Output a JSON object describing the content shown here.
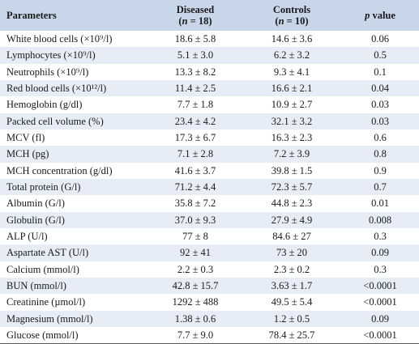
{
  "table": {
    "headers": {
      "parameters": "Parameters",
      "diseased": {
        "label": "Diseased",
        "sub_open": "(",
        "n_var": "n",
        "sub_rest": " = 18)"
      },
      "controls": {
        "label": "Controls",
        "sub_open": "(",
        "n_var": "n",
        "sub_rest": " = 10)"
      },
      "p_value": {
        "p_var": "p",
        "rest": " value"
      }
    },
    "rows": [
      {
        "parameter": "White blood cells (×10⁹/l)",
        "diseased": "18.6 ± 5.8",
        "controls": "14.6 ± 3.6",
        "p": "0.06"
      },
      {
        "parameter": "Lymphocytes (×10⁹/l)",
        "diseased": "5.1 ± 3.0",
        "controls": "6.2 ± 3.2",
        "p": "0.5"
      },
      {
        "parameter": "Neutrophils (×10⁹/l)",
        "diseased": "13.3 ± 8.2",
        "controls": "9.3 ± 4.1",
        "p": "0.1"
      },
      {
        "parameter": "Red blood cells (×10¹²/l)",
        "diseased": "11.4 ± 2.5",
        "controls": "16.6 ± 2.1",
        "p": "0.04"
      },
      {
        "parameter": "Hemoglobin (g/dl)",
        "diseased": "7.7 ± 1.8",
        "controls": "10.9 ± 2.7",
        "p": "0.03"
      },
      {
        "parameter": "Packed cell volume (%)",
        "diseased": "23.4 ± 4.2",
        "controls": "32.1 ± 3.2",
        "p": "0.03"
      },
      {
        "parameter": "MCV (fl)",
        "diseased": "17.3 ± 6.7",
        "controls": "16.3 ± 2.3",
        "p": "0.6"
      },
      {
        "parameter": "MCH (pg)",
        "diseased": "7.1 ± 2.8",
        "controls": "7.2 ± 3.9",
        "p": "0.8"
      },
      {
        "parameter": "MCH concentration (g/dl)",
        "diseased": "41.6 ± 3.7",
        "controls": "39.8 ± 1.5",
        "p": "0.9"
      },
      {
        "parameter": "Total protein (G/l)",
        "diseased": "71.2 ± 4.4",
        "controls": "72.3 ± 5.7",
        "p": "0.7"
      },
      {
        "parameter": "Albumin (G/l)",
        "diseased": "35.8 ± 7.2",
        "controls": "44.8 ± 2.3",
        "p": "0.01"
      },
      {
        "parameter": "Globulin (G/l)",
        "diseased": "37.0 ± 9.3",
        "controls": "27.9 ± 4.9",
        "p": "0.008"
      },
      {
        "parameter": "ALP (U/l)",
        "diseased": "77 ± 8",
        "controls": "84.6 ± 27",
        "p": "0.3"
      },
      {
        "parameter": "Aspartate AST (U/l)",
        "diseased": "92 ± 41",
        "controls": "73 ± 20",
        "p": "0.09"
      },
      {
        "parameter": "Calcium (mmol/l)",
        "diseased": "2.2 ± 0.3",
        "controls": "2.3 ± 0.2",
        "p": "0.3"
      },
      {
        "parameter": "BUN (mmol/l)",
        "diseased": "42.8 ± 15.7",
        "controls": "3.63 ± 1.7",
        "p": "<0.0001"
      },
      {
        "parameter": "Creatinine (µmol/l)",
        "diseased": "1292 ± 488",
        "controls": "49.5 ± 5.4",
        "p": "<0.0001"
      },
      {
        "parameter": "Magnesium (mmol/l)",
        "diseased": "1.38 ± 0.6",
        "controls": "1.2 ± 0.5",
        "p": "0.09"
      },
      {
        "parameter": "Glucose (mmol/l)",
        "diseased": "7.7 ± 9.0",
        "controls": "78.4 ± 25.7",
        "p": "<0.0001"
      }
    ]
  },
  "colors": {
    "header_bg": "#c8d6ea",
    "stripe_bg": "#e6edf6",
    "text": "#1a1a1a"
  }
}
